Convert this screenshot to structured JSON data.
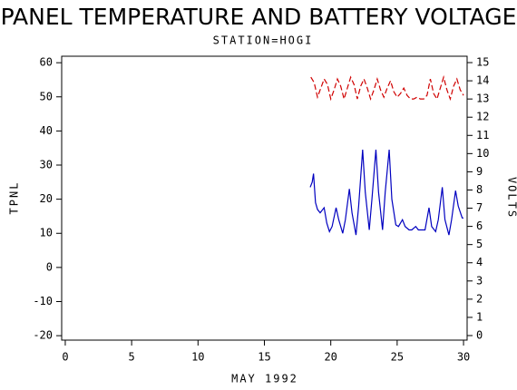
{
  "chart_data": {
    "type": "line",
    "title": "PANEL TEMPERATURE AND BATTERY VOLTAGE",
    "subtitle": "STATION=HOGI",
    "xlabel": "MAY 1992",
    "ylabel": "TPNL",
    "y2label": "VOLTS",
    "xlim": [
      -0.27,
      30.27
    ],
    "xticks": [
      0,
      5,
      10,
      15,
      20,
      25,
      30
    ],
    "ylim": [
      -21.3,
      61.9
    ],
    "yticks": [
      -20,
      -10,
      0,
      10,
      20,
      30,
      40,
      50,
      60
    ],
    "y2lim": [
      -0.25,
      15.35
    ],
    "y2ticks": [
      0,
      1,
      2,
      3,
      4,
      5,
      6,
      7,
      8,
      9,
      10,
      11,
      12,
      13,
      14,
      15
    ],
    "series": [
      {
        "color": "#0000c0",
        "dash": false,
        "x": [
          18.45,
          18.6,
          18.7,
          18.85,
          19.0,
          19.2,
          19.5,
          19.7,
          19.9,
          20.1,
          20.4,
          20.6,
          20.9,
          21.1,
          21.4,
          21.6,
          21.9,
          22.1,
          22.4,
          22.6,
          22.9,
          23.1,
          23.4,
          23.6,
          23.9,
          24.1,
          24.4,
          24.6,
          24.9,
          25.1,
          25.4,
          25.6,
          25.9,
          26.1,
          26.4,
          26.6,
          26.9,
          27.1,
          27.4,
          27.6,
          27.9,
          28.1,
          28.4,
          28.6,
          28.9,
          29.1,
          29.4,
          29.6,
          29.9,
          30.0
        ],
        "values": [
          23.5,
          25,
          27.5,
          19,
          17,
          16,
          17.5,
          13,
          10.5,
          12,
          17.5,
          14,
          10,
          14,
          23,
          16,
          9.5,
          18,
          34.5,
          22,
          11,
          20,
          34.5,
          22,
          11,
          22,
          34.5,
          20,
          12.5,
          12,
          14,
          12,
          11,
          11,
          12,
          11,
          11,
          11,
          17.5,
          12,
          10.5,
          14,
          23.5,
          14,
          9.5,
          14,
          22.5,
          18,
          14.5,
          14.5
        ]
      },
      {
        "color": "#d00000",
        "dash": true,
        "axis": "y2",
        "x": [
          18.5,
          18.75,
          19.0,
          19.25,
          19.5,
          19.75,
          20.0,
          20.25,
          20.5,
          20.75,
          21.0,
          21.25,
          21.5,
          21.75,
          22.0,
          22.25,
          22.5,
          22.75,
          23.0,
          23.25,
          23.5,
          23.75,
          24.0,
          24.25,
          24.5,
          24.75,
          25.0,
          25.25,
          25.5,
          25.75,
          26.0,
          26.25,
          26.5,
          26.75,
          27.0,
          27.25,
          27.5,
          27.75,
          28.0,
          28.25,
          28.5,
          28.75,
          29.0,
          29.25,
          29.5,
          29.75,
          30.0
        ],
        "values": [
          14.2,
          13.9,
          13.1,
          13.6,
          14.1,
          13.8,
          13.0,
          13.5,
          14.1,
          13.7,
          13.0,
          13.6,
          14.2,
          13.8,
          13.0,
          13.7,
          14.1,
          13.6,
          13.0,
          13.5,
          14.1,
          13.5,
          13.1,
          13.6,
          14.0,
          13.4,
          13.1,
          13.3,
          13.6,
          13.2,
          13.0,
          13.0,
          13.1,
          13.0,
          13.0,
          13.2,
          14.1,
          13.3,
          13.0,
          13.6,
          14.2,
          13.5,
          13.0,
          13.7,
          14.1,
          13.5,
          13.2
        ]
      }
    ]
  }
}
